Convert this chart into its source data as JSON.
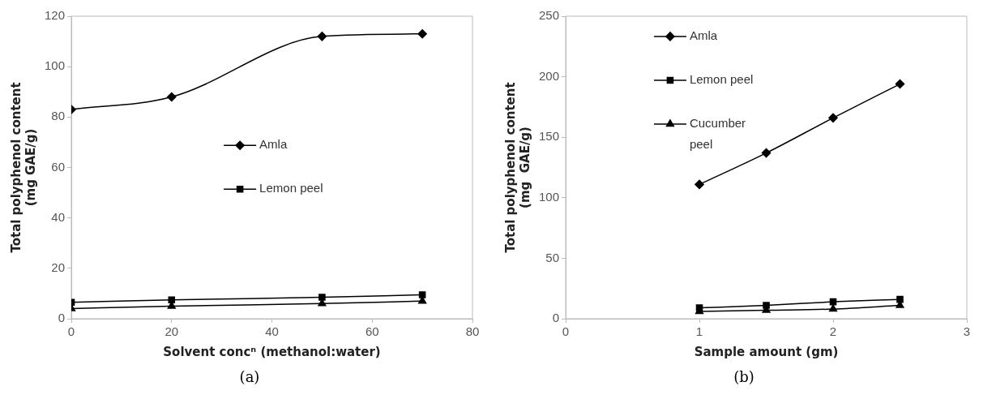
{
  "chart_data": [
    {
      "type": "line",
      "xlabel": "Solvent concⁿ (methanol:water)",
      "ylabel": "Total polyphenol content\n(mg GAE/g)",
      "x": [
        0,
        20,
        50,
        70
      ],
      "xlim": [
        0,
        80
      ],
      "xticks": [
        0,
        20,
        40,
        60,
        80
      ],
      "ylim": [
        0,
        120
      ],
      "yticks": [
        0,
        20,
        40,
        60,
        80,
        100,
        120
      ],
      "grid": false,
      "legend": "center",
      "annotations": [
        "(a)"
      ],
      "series": [
        {
          "name": "Amla",
          "color": "#000000",
          "marker": "diamond",
          "values": [
            83,
            88,
            112,
            113
          ]
        },
        {
          "name": "Lemon peel",
          "color": "#000000",
          "marker": "square",
          "values": [
            6.5,
            7.5,
            8.5,
            9.5
          ]
        },
        {
          "color": "#000000",
          "marker": "triangle",
          "values": [
            4,
            5,
            6,
            7
          ]
        }
      ]
    },
    {
      "type": "line",
      "xlabel": "Sample amount (gm)",
      "ylabel": "Total polyphenol content\n(mg  GAE/g)",
      "x": [
        1,
        1.5,
        2,
        2.5
      ],
      "xlim": [
        0,
        3
      ],
      "xticks": [
        0,
        1,
        2,
        3
      ],
      "ylim": [
        0,
        250
      ],
      "yticks": [
        0,
        50,
        100,
        150,
        200,
        250
      ],
      "grid": false,
      "legend": "top",
      "annotations": [
        "(b)"
      ],
      "series": [
        {
          "name": "Amla",
          "color": "#000000",
          "marker": "diamond",
          "values": [
            111,
            137,
            166,
            194
          ]
        },
        {
          "name": "Lemon peel",
          "color": "#000000",
          "marker": "square",
          "values": [
            9,
            11,
            14,
            16
          ]
        },
        {
          "name": "Cucumber peel",
          "color": "#000000",
          "marker": "triangle",
          "values": [
            6,
            7,
            8,
            11
          ]
        }
      ]
    }
  ]
}
